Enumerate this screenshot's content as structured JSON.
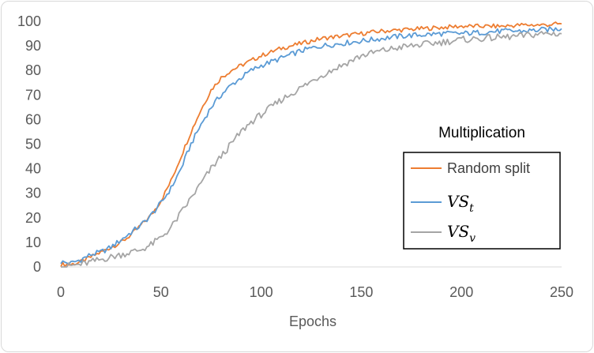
{
  "chart_data": {
    "type": "line",
    "title": "Multiplication",
    "xlabel": "Epochs",
    "ylabel": "",
    "xlim": [
      0,
      250
    ],
    "ylim": [
      0,
      100
    ],
    "x_ticks": [
      "0",
      "50",
      "100",
      "150",
      "200",
      "250"
    ],
    "y_ticks": [
      "0",
      "10",
      "20",
      "30",
      "40",
      "50",
      "60",
      "70",
      "80",
      "90",
      "100"
    ],
    "grid": false,
    "legend_position": "right",
    "series": [
      {
        "name": "Random split",
        "legend_label": "Random split",
        "color": "#ED7D31",
        "x": [
          0,
          5,
          10,
          15,
          20,
          25,
          30,
          35,
          40,
          45,
          50,
          55,
          60,
          65,
          70,
          75,
          80,
          85,
          90,
          95,
          100,
          110,
          120,
          130,
          140,
          150,
          160,
          170,
          180,
          190,
          200,
          210,
          220,
          230,
          240,
          250
        ],
        "values": [
          1,
          1,
          2,
          4,
          6,
          8,
          10,
          13,
          17,
          21,
          27,
          35,
          45,
          55,
          64,
          72,
          77,
          80,
          82,
          84,
          86,
          89,
          91,
          93,
          94,
          95,
          96,
          96.5,
          97,
          97.5,
          98,
          98,
          98,
          98.5,
          98.5,
          99
        ]
      },
      {
        "name": "VS_t",
        "legend_main": "VS",
        "legend_sub": "t",
        "color": "#5B9BD5",
        "x": [
          0,
          5,
          10,
          15,
          20,
          25,
          30,
          35,
          40,
          45,
          50,
          55,
          60,
          65,
          70,
          75,
          80,
          85,
          90,
          95,
          100,
          110,
          120,
          130,
          140,
          150,
          160,
          170,
          180,
          190,
          200,
          210,
          220,
          230,
          240,
          250
        ],
        "values": [
          2,
          1.5,
          3,
          5,
          6,
          8,
          11,
          14,
          17,
          21,
          26,
          32,
          40,
          50,
          58,
          65,
          70,
          74,
          77,
          80,
          82,
          85,
          88,
          90,
          91,
          92,
          93,
          94,
          94.5,
          95,
          95,
          95.5,
          96,
          96,
          96.5,
          97
        ]
      },
      {
        "name": "VS_v",
        "legend_main": "VS",
        "legend_sub": "v",
        "color": "#A5A5A5",
        "x": [
          0,
          5,
          10,
          15,
          20,
          25,
          30,
          35,
          40,
          45,
          50,
          55,
          60,
          65,
          70,
          75,
          80,
          85,
          90,
          95,
          100,
          110,
          120,
          130,
          140,
          150,
          160,
          170,
          180,
          190,
          200,
          210,
          220,
          230,
          240,
          250
        ],
        "values": [
          0,
          0.5,
          1,
          2,
          3,
          4,
          5,
          6,
          7,
          9,
          12,
          16,
          22,
          28,
          34,
          40,
          45,
          50,
          55,
          59,
          62,
          68,
          73,
          78,
          82,
          86,
          88,
          89.5,
          90.5,
          91.5,
          92.5,
          93,
          93.5,
          94,
          95,
          95
        ]
      }
    ]
  }
}
